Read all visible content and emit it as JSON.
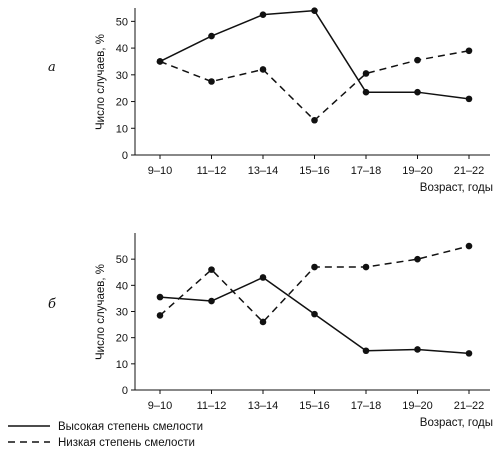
{
  "chart_data": [
    {
      "type": "line",
      "title": "а",
      "xlabel": "Возраст, годы",
      "ylabel": "Число случаев, %",
      "categories": [
        "9–10",
        "11–12",
        "13–14",
        "15–16",
        "17–18",
        "19–20",
        "21–22"
      ],
      "ylim": [
        0,
        55
      ],
      "yticks": [
        0,
        10,
        20,
        30,
        40,
        50
      ],
      "grid": false,
      "series": [
        {
          "name": "Высокая степень смелости",
          "style": "solid",
          "values": [
            35,
            44.5,
            52.5,
            54,
            23.5,
            23.5,
            21
          ]
        },
        {
          "name": "Низкая степень смелости",
          "style": "dashed",
          "values": [
            35,
            27.5,
            32,
            13,
            30.5,
            35.5,
            39
          ]
        }
      ]
    },
    {
      "type": "line",
      "title": "б",
      "xlabel": "Возраст, годы",
      "ylabel": "Число случаев, %",
      "categories": [
        "9–10",
        "11–12",
        "13–14",
        "15–16",
        "17–18",
        "19–20",
        "21–22"
      ],
      "ylim": [
        0,
        60
      ],
      "yticks": [
        0,
        10,
        20,
        30,
        40,
        50
      ],
      "grid": false,
      "series": [
        {
          "name": "Высокая степень смелости",
          "style": "solid",
          "values": [
            35.5,
            34,
            43,
            29,
            15,
            15.5,
            14
          ]
        },
        {
          "name": "Низкая степень смелости",
          "style": "dashed",
          "values": [
            28.5,
            46,
            26,
            47,
            47,
            50,
            55
          ]
        }
      ]
    }
  ],
  "legend": {
    "placement": "bottom-left",
    "items": [
      {
        "label": "Высокая степень смелости",
        "style": "solid"
      },
      {
        "label": "Низкая степень смелости",
        "style": "dashed"
      }
    ]
  },
  "colors": {
    "line": "#111111",
    "marker": "#111111",
    "axis": "#111111"
  }
}
